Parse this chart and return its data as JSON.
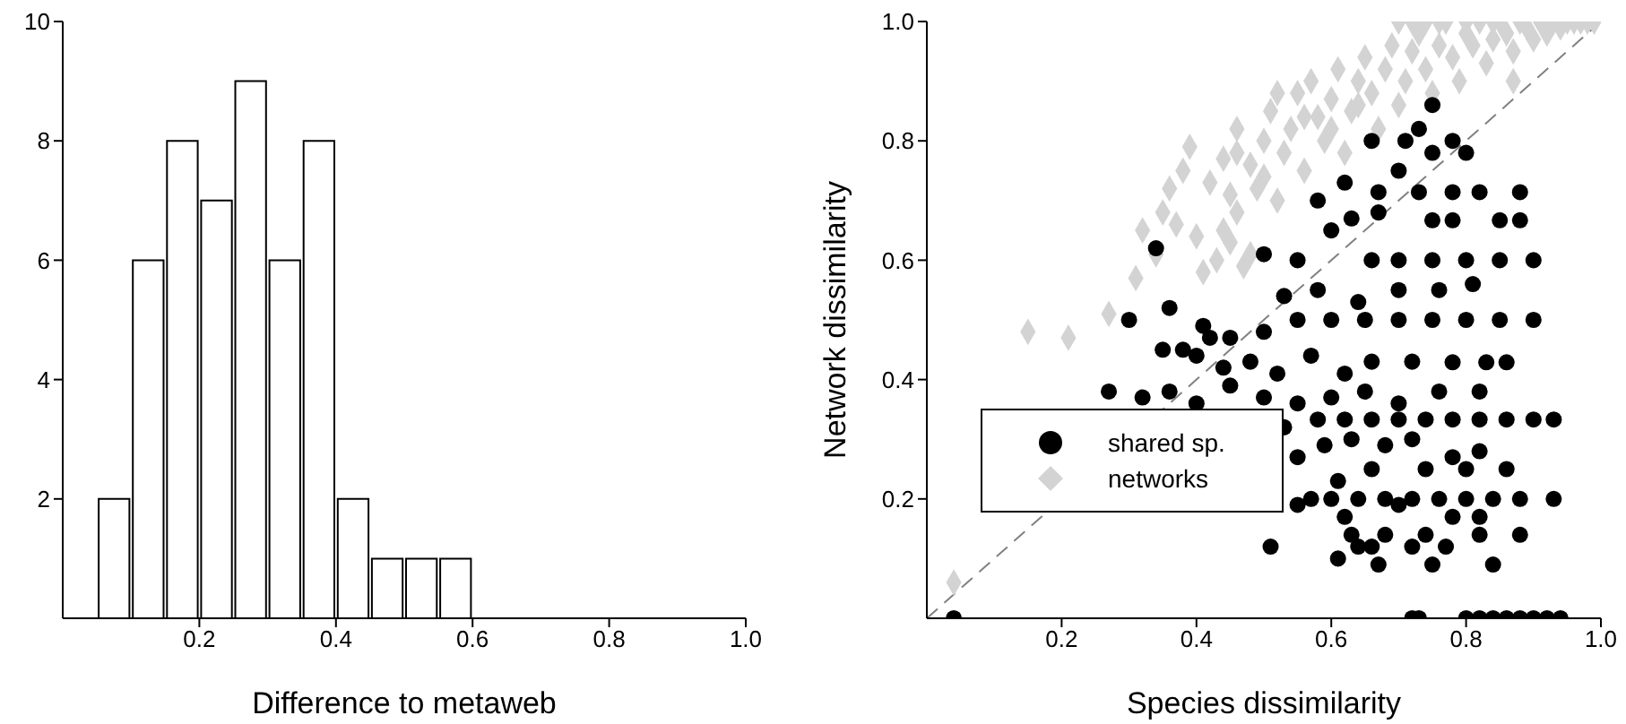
{
  "chart_data": [
    {
      "type": "histogram",
      "xlabel": "Difference to metaweb",
      "bins": [
        0.05,
        0.1,
        0.15,
        0.2,
        0.25,
        0.3,
        0.35,
        0.4,
        0.45,
        0.5,
        0.55,
        0.6
      ],
      "values": [
        2,
        6,
        8,
        7,
        9,
        6,
        8,
        2,
        1,
        1,
        1
      ],
      "color": "#ffffff",
      "xlim": [
        0,
        1
      ],
      "xticks": [
        0.2,
        0.4,
        0.6,
        0.8,
        {
          "value": 1,
          "label": "1.0"
        }
      ],
      "ylim": [
        0,
        10
      ],
      "yticks": [
        2,
        4,
        6,
        8,
        10
      ]
    },
    {
      "type": "scatter",
      "xlabel": "Species dissimilarity",
      "ylabel": "Network dissimilarity",
      "xlim": [
        0,
        1
      ],
      "xticks": [
        0.2,
        0.4,
        0.6,
        0.8,
        {
          "value": 1,
          "label": "1.0"
        }
      ],
      "ylim": [
        0,
        1
      ],
      "yticks": [
        0.2,
        0.4,
        0.6,
        0.8,
        {
          "value": 1,
          "label": "1.0"
        }
      ],
      "legend": "left",
      "series": [
        {
          "name": "shared sp.",
          "color": "#000000",
          "marker": "circle",
          "x": [
            0.04,
            0.72,
            0.73,
            0.8,
            0.82,
            0.84,
            0.86,
            0.88,
            0.9,
            0.92,
            0.94,
            0.51,
            0.61,
            0.67,
            0.75,
            0.84,
            0.64,
            0.72,
            0.77,
            0.66,
            0.63,
            0.68,
            0.74,
            0.82,
            0.88,
            0.62,
            0.78,
            0.82,
            0.57,
            0.6,
            0.64,
            0.68,
            0.72,
            0.76,
            0.8,
            0.84,
            0.88,
            0.93,
            0.55,
            0.7,
            0.61,
            0.66,
            0.74,
            0.8,
            0.86,
            0.78,
            0.82,
            0.55,
            0.59,
            0.63,
            0.68,
            0.72,
            0.53,
            0.58,
            0.62,
            0.66,
            0.7,
            0.74,
            0.78,
            0.82,
            0.86,
            0.9,
            0.93,
            0.27,
            0.32,
            0.36,
            0.4,
            0.45,
            0.5,
            0.55,
            0.6,
            0.65,
            0.7,
            0.76,
            0.82,
            0.35,
            0.4,
            0.44,
            0.48,
            0.52,
            0.57,
            0.62,
            0.66,
            0.72,
            0.78,
            0.83,
            0.86,
            0.3,
            0.36,
            0.41,
            0.45,
            0.5,
            0.55,
            0.6,
            0.65,
            0.7,
            0.75,
            0.8,
            0.85,
            0.9,
            0.38,
            0.42,
            0.53,
            0.58,
            0.64,
            0.7,
            0.76,
            0.81,
            0.34,
            0.5,
            0.55,
            0.66,
            0.7,
            0.75,
            0.8,
            0.85,
            0.9,
            0.6,
            0.63,
            0.67,
            0.75,
            0.78,
            0.85,
            0.88,
            0.58,
            0.67,
            0.73,
            0.78,
            0.82,
            0.88,
            0.62,
            0.7,
            0.75,
            0.8,
            0.66,
            0.71,
            0.78,
            0.73,
            0.75
          ],
          "values": [
            0,
            0,
            0,
            0,
            0,
            0,
            0,
            0,
            0,
            0,
            0,
            0.12,
            0.1,
            0.09,
            0.09,
            0.09,
            0.12,
            0.12,
            0.12,
            0.12,
            0.14,
            0.14,
            0.14,
            0.14,
            0.14,
            0.17,
            0.17,
            0.17,
            0.2,
            0.2,
            0.2,
            0.2,
            0.2,
            0.2,
            0.2,
            0.2,
            0.2,
            0.2,
            0.19,
            0.19,
            0.23,
            0.25,
            0.25,
            0.25,
            0.25,
            0.27,
            0.28,
            0.27,
            0.29,
            0.3,
            0.29,
            0.3,
            0.32,
            0.333,
            0.333,
            0.333,
            0.333,
            0.333,
            0.333,
            0.333,
            0.333,
            0.333,
            0.333,
            0.38,
            0.37,
            0.38,
            0.36,
            0.39,
            0.37,
            0.36,
            0.37,
            0.38,
            0.36,
            0.38,
            0.38,
            0.45,
            0.44,
            0.42,
            0.43,
            0.41,
            0.44,
            0.41,
            0.43,
            0.43,
            0.429,
            0.429,
            0.429,
            0.5,
            0.52,
            0.49,
            0.47,
            0.48,
            0.5,
            0.5,
            0.5,
            0.5,
            0.5,
            0.5,
            0.5,
            0.5,
            0.45,
            0.47,
            0.54,
            0.55,
            0.53,
            0.55,
            0.55,
            0.56,
            0.62,
            0.61,
            0.6,
            0.6,
            0.6,
            0.6,
            0.6,
            0.6,
            0.6,
            0.65,
            0.67,
            0.68,
            0.667,
            0.667,
            0.667,
            0.667,
            0.7,
            0.714,
            0.714,
            0.714,
            0.714,
            0.714,
            0.73,
            0.75,
            0.78,
            0.78,
            0.8,
            0.8,
            0.8,
            0.82,
            0.86
          ]
        },
        {
          "name": "networks",
          "color": "#d3d3d3",
          "marker": "diamond",
          "x": [
            0.04,
            0.15,
            0.21,
            0.27,
            0.31,
            0.34,
            0.32,
            0.35,
            0.37,
            0.4,
            0.41,
            0.43,
            0.44,
            0.46,
            0.36,
            0.38,
            0.39,
            0.42,
            0.44,
            0.45,
            0.46,
            0.48,
            0.5,
            0.5,
            0.51,
            0.52,
            0.53,
            0.54,
            0.55,
            0.56,
            0.57,
            0.58,
            0.59,
            0.6,
            0.61,
            0.62,
            0.63,
            0.64,
            0.65,
            0.66,
            0.67,
            0.68,
            0.69,
            0.7,
            0.71,
            0.72,
            0.73,
            0.74,
            0.75,
            0.76,
            0.77,
            0.78,
            0.79,
            0.8,
            0.81,
            0.82,
            0.83,
            0.84,
            0.85,
            0.86,
            0.87,
            0.88,
            0.89,
            0.9,
            0.91,
            0.92,
            0.93,
            0.94,
            0.95,
            0.96,
            0.97,
            0.98,
            0.99,
            0.7,
            0.72,
            0.74,
            0.76,
            0.8,
            0.84,
            0.87,
            0.46,
            0.49,
            0.52,
            0.56,
            0.6,
            0.64,
            0.45,
            0.47,
            0.48
          ],
          "values": [
            0.06,
            0.48,
            0.47,
            0.51,
            0.57,
            0.61,
            0.65,
            0.68,
            0.66,
            0.64,
            0.58,
            0.6,
            0.65,
            0.68,
            0.72,
            0.75,
            0.79,
            0.73,
            0.77,
            0.71,
            0.82,
            0.76,
            0.74,
            0.8,
            0.85,
            0.7,
            0.78,
            0.82,
            0.88,
            0.75,
            0.9,
            0.84,
            0.8,
            0.87,
            0.92,
            0.78,
            0.85,
            0.9,
            0.94,
            0.88,
            0.82,
            0.92,
            0.96,
            0.86,
            0.9,
            0.95,
            0.98,
            0.92,
            0.88,
            0.96,
            1,
            0.94,
            0.9,
            0.98,
            0.96,
            1,
            0.93,
            0.97,
            1,
            0.98,
            0.95,
            1,
            0.99,
            0.97,
            1,
            0.98,
            1,
            0.99,
            1,
            1,
            1,
            1,
            1,
            1,
            1,
            1,
            1,
            1,
            1,
            0.9,
            0.78,
            0.72,
            0.88,
            0.84,
            0.82,
            0.86,
            0.63,
            0.59,
            0.61
          ]
        },
        {
          "type": "line",
          "color": "#808080",
          "line_style": "dashed",
          "marker": "none",
          "x": [
            0,
            1
          ],
          "values": [
            0,
            1
          ]
        }
      ]
    }
  ]
}
